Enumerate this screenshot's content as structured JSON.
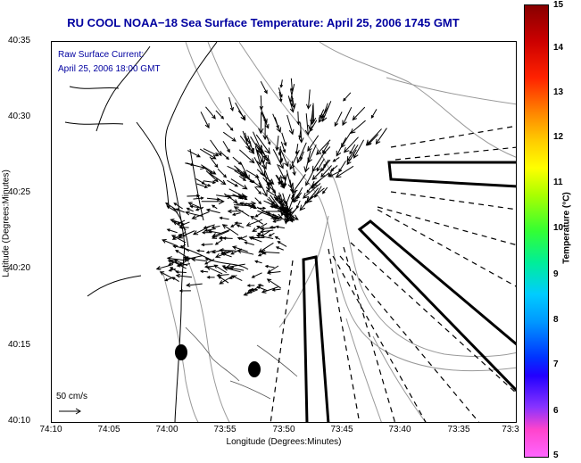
{
  "title": "RU COOL  NOAA−18  Sea Surface Temperature:  April 25, 2006 1745 GMT",
  "legend": {
    "line1": "Raw Surface Current:",
    "line2": "April 25, 2006 18:00 GMT"
  },
  "scale_label": "50 cm/s",
  "axes": {
    "xlabel": "Longitude (Degrees:Minutes)",
    "ylabel": "Latitude (Degrees:Minutes)",
    "xticks": [
      "74:10",
      "74:05",
      "74:00",
      "73:55",
      "73:50",
      "73:45",
      "73:40",
      "73:35",
      "73:3"
    ],
    "yticks": [
      "40:35",
      "40:30",
      "40:25",
      "40:20",
      "40:15",
      "40:10"
    ]
  },
  "colorbar": {
    "label": "Temperature (°C)",
    "ticks": [
      "15",
      "14",
      "13",
      "12",
      "11",
      "10",
      "9",
      "8",
      "7",
      "6",
      "5"
    ],
    "range": [
      5,
      15
    ]
  },
  "colors": {
    "title": "#0000a0",
    "coast": "#000000",
    "bathymetry": "#999999"
  }
}
